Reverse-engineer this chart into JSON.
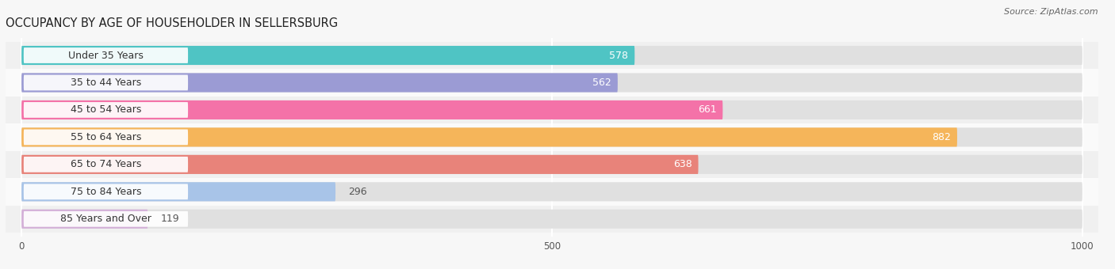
{
  "title": "OCCUPANCY BY AGE OF HOUSEHOLDER IN SELLERSBURG",
  "source": "Source: ZipAtlas.com",
  "categories": [
    "Under 35 Years",
    "35 to 44 Years",
    "45 to 54 Years",
    "55 to 64 Years",
    "65 to 74 Years",
    "75 to 84 Years",
    "85 Years and Over"
  ],
  "values": [
    578,
    562,
    661,
    882,
    638,
    296,
    119
  ],
  "bar_colors": [
    "#4fc4c4",
    "#9b9bd4",
    "#f472a8",
    "#f5b55a",
    "#e8837a",
    "#a8c4e8",
    "#d4b0d8"
  ],
  "xlim": [
    0,
    1000
  ],
  "xticks": [
    0,
    500,
    1000
  ],
  "title_fontsize": 10.5,
  "label_fontsize": 9,
  "value_fontsize": 9,
  "bg_color": "#f7f7f7",
  "row_bg_even": "#f0f0f0",
  "row_bg_odd": "#fafafa",
  "bar_track_color": "#e8e8e8",
  "label_pill_color": "#ffffff",
  "value_inside_color": "#ffffff",
  "value_outside_color": "#555555"
}
